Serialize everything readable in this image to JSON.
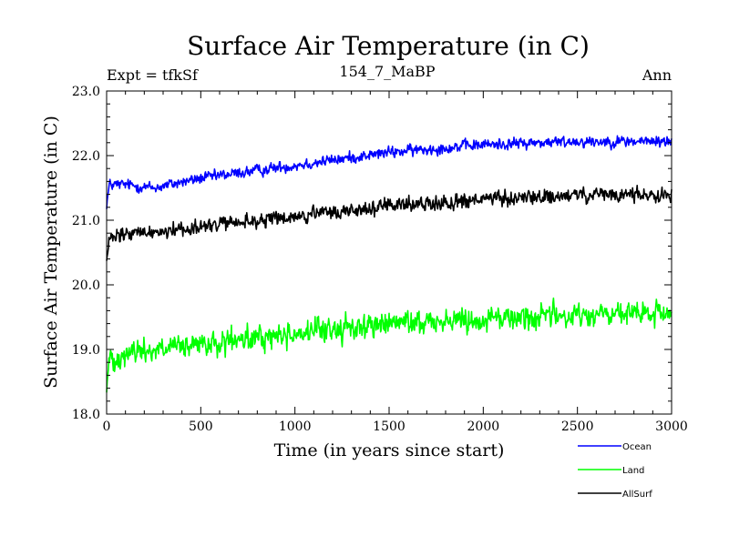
{
  "chart_data": {
    "type": "line",
    "title": "Surface Air Temperature (in C)",
    "subtitle": "154_7_MaBP",
    "left_annotation": "Expt = tfkSf",
    "right_annotation": "Ann",
    "xlabel": "Time (in years since start)",
    "ylabel": "Surface Air Temperature (in C)",
    "xlim": [
      0,
      3000
    ],
    "ylim": [
      18.0,
      23.0
    ],
    "x_ticks": [
      0,
      500,
      1000,
      1500,
      2000,
      2500,
      3000
    ],
    "x_tick_labels": [
      "0",
      "500",
      "1000",
      "1500",
      "2000",
      "2500",
      "3000"
    ],
    "y_ticks": [
      18.0,
      19.0,
      20.0,
      21.0,
      22.0,
      23.0
    ],
    "y_tick_labels": [
      "18.0",
      "19.0",
      "20.0",
      "21.0",
      "22.0",
      "23.0"
    ],
    "grid": false,
    "legend_position": "bottom-right",
    "series": [
      {
        "name": "Ocean",
        "color": "#0000ff",
        "noise": 0.06,
        "anchors_x": [
          0,
          15,
          100,
          250,
          500,
          1000,
          1500,
          2000,
          2500,
          3000
        ],
        "anchors_y": [
          21.25,
          21.55,
          21.55,
          21.5,
          21.65,
          21.85,
          22.05,
          22.17,
          22.22,
          22.22
        ]
      },
      {
        "name": "Land",
        "color": "#00ff00",
        "noise": 0.13,
        "anchors_x": [
          0,
          15,
          100,
          250,
          500,
          1000,
          1500,
          2000,
          2500,
          3000
        ],
        "anchors_y": [
          18.4,
          18.85,
          18.95,
          19.0,
          19.05,
          19.25,
          19.4,
          19.48,
          19.53,
          19.55
        ]
      },
      {
        "name": "AllSurf",
        "color": "#000000",
        "noise": 0.08,
        "anchors_x": [
          0,
          15,
          100,
          250,
          500,
          1000,
          1500,
          2000,
          2500,
          3000
        ],
        "anchors_y": [
          20.35,
          20.7,
          20.78,
          20.82,
          20.9,
          21.05,
          21.22,
          21.32,
          21.38,
          21.4
        ]
      }
    ]
  }
}
